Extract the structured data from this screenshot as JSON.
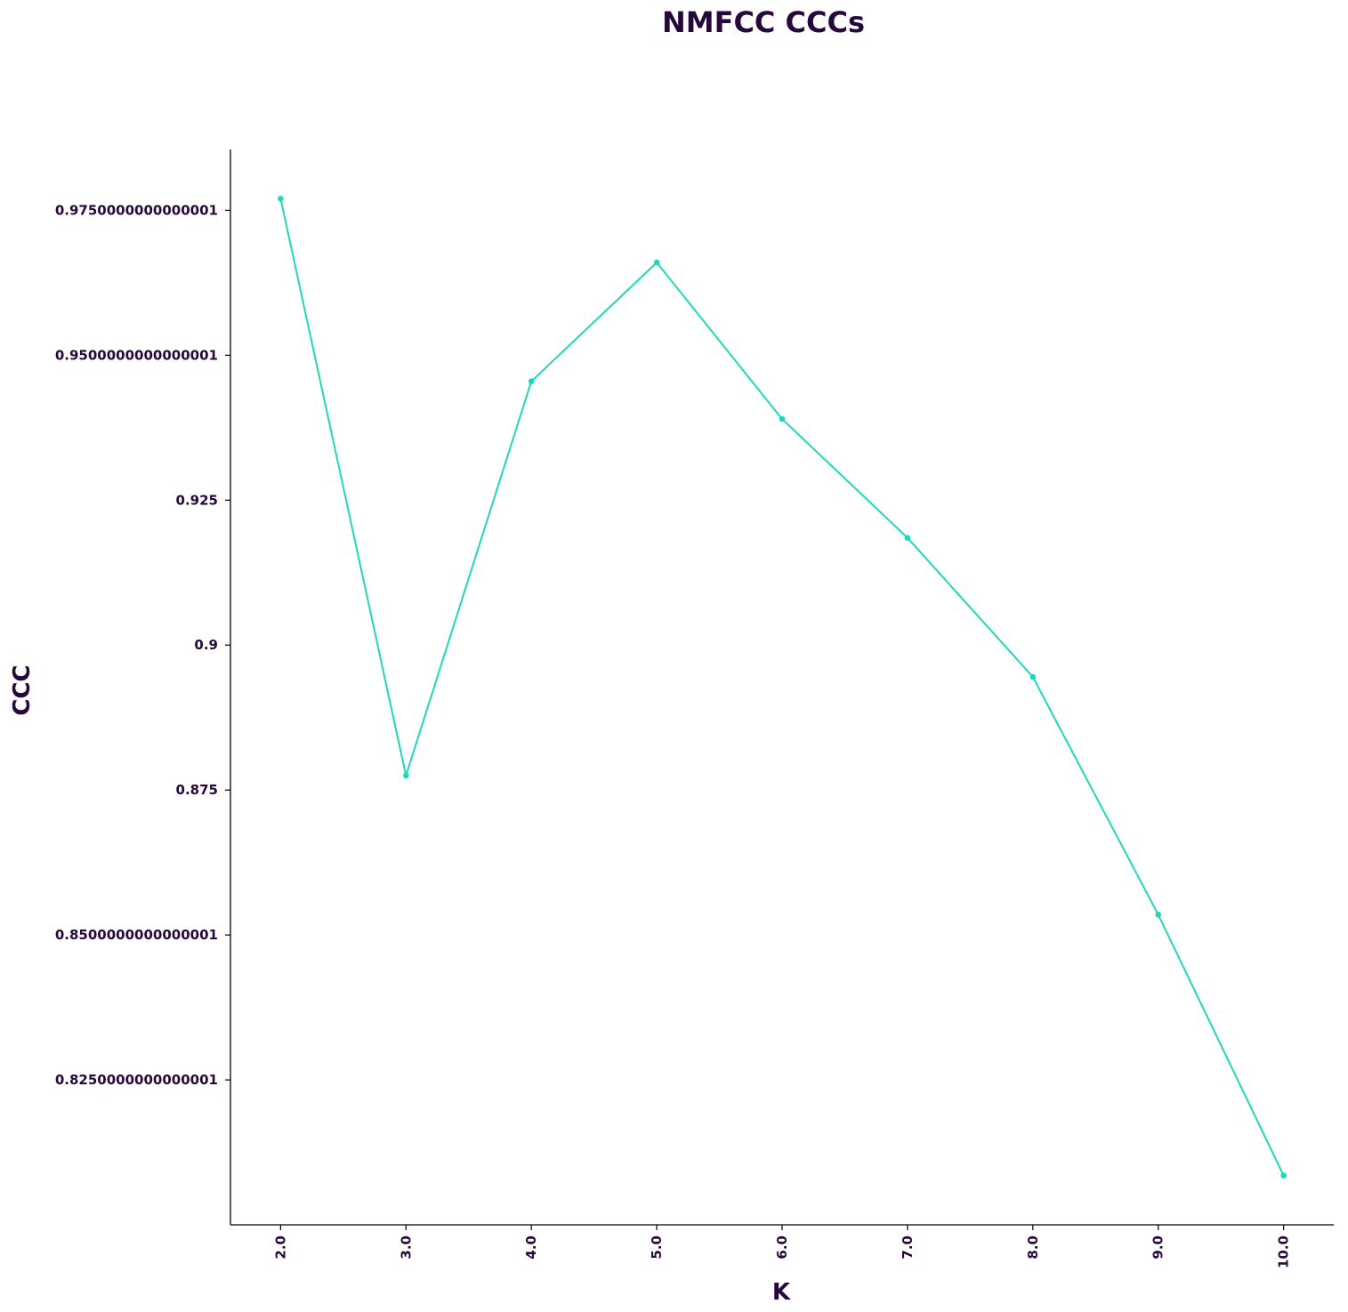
{
  "chart_data": {
    "type": "line",
    "title": "NMFCC CCCs",
    "xlabel": "K",
    "ylabel": "CCC",
    "x": [
      2.0,
      3.0,
      4.0,
      5.0,
      6.0,
      7.0,
      8.0,
      9.0,
      10.0
    ],
    "x_tick_labels": [
      "2.0",
      "3.0",
      "4.0",
      "5.0",
      "6.0",
      "7.0",
      "8.0",
      "9.0",
      "10.0"
    ],
    "series": [
      {
        "values": [
          0.977,
          0.8775,
          0.9455,
          0.966,
          0.939,
          0.9185,
          0.8945,
          0.8535,
          0.8085
        ]
      }
    ],
    "y_ticks": [
      0.8250000000000001,
      0.8500000000000001,
      0.875,
      0.9,
      0.925,
      0.9500000000000001,
      0.9750000000000001
    ],
    "y_tick_labels": [
      "0.8250000000000001",
      "0.8500000000000001",
      "0.875",
      "0.9",
      "0.925",
      "0.9500000000000001",
      "0.9750000000000001"
    ],
    "xlim": [
      1.6,
      10.4
    ],
    "ylim": [
      0.8,
      0.9855
    ],
    "grid": false,
    "line_color": "#1fd8b9",
    "text_color": "#26093a"
  }
}
